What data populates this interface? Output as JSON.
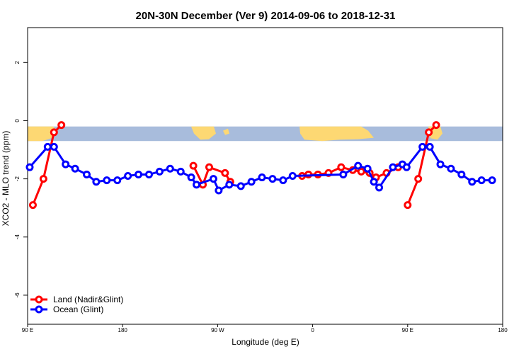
{
  "chart_data": {
    "type": "line",
    "title": "20N-30N December (Ver 9)   2014-09-06 to 2018-12-31",
    "xlabel": "Longitude (deg E)",
    "ylabel": "XCO2 - MLO trend (ppm)",
    "xlim": [
      90,
      540
    ],
    "ylim": [
      -7,
      3.2
    ],
    "x_ticks": [
      {
        "value": 90,
        "label": "90 E"
      },
      {
        "value": 180,
        "label": "180"
      },
      {
        "value": 270,
        "label": "90 W"
      },
      {
        "value": 360,
        "label": "0"
      },
      {
        "value": 450,
        "label": "90 E"
      },
      {
        "value": 540,
        "label": "180"
      }
    ],
    "y_ticks": [
      {
        "value": -6,
        "label": "-6"
      },
      {
        "value": -4,
        "label": "-4"
      },
      {
        "value": -2,
        "label": "-2"
      },
      {
        "value": 0,
        "label": "0"
      },
      {
        "value": 2,
        "label": "2"
      }
    ],
    "map_strip": {
      "y_top": -0.2,
      "y_bottom": -0.7,
      "ocean_color": "#a8bcdc",
      "land_color": "#fdd873"
    },
    "legend_position": "bottom-left",
    "series": [
      {
        "name": "Land (Nadir&Glint)",
        "color": "#ff0000",
        "segments": [
          [
            [
              95,
              -2.9
            ],
            [
              105,
              -2.0
            ],
            [
              115,
              -0.4
            ],
            [
              122,
              -0.15
            ]
          ],
          [
            [
              247,
              -1.55
            ],
            [
              256,
              -2.2
            ],
            [
              262,
              -1.6
            ],
            [
              277,
              -1.8
            ],
            [
              282,
              -2.1
            ]
          ],
          [
            [
              350,
              -1.9
            ],
            [
              356,
              -1.85
            ],
            [
              365,
              -1.85
            ],
            [
              375,
              -1.8
            ],
            [
              387,
              -1.6
            ],
            [
              398,
              -1.7
            ],
            [
              406,
              -1.75
            ],
            [
              414,
              -1.8
            ],
            [
              420,
              -1.95
            ],
            [
              430,
              -1.8
            ],
            [
              441,
              -1.6
            ]
          ],
          [
            [
              450,
              -2.9
            ],
            [
              460,
              -2.0
            ],
            [
              470,
              -0.4
            ],
            [
              477,
              -0.15
            ]
          ]
        ]
      },
      {
        "name": "Ocean (Glint)",
        "color": "#0000ff",
        "segments": [
          [
            [
              92,
              -1.6
            ],
            [
              109,
              -0.9
            ],
            [
              115,
              -0.9
            ],
            [
              126,
              -1.5
            ],
            [
              135,
              -1.65
            ],
            [
              146,
              -1.85
            ],
            [
              155,
              -2.1
            ],
            [
              165,
              -2.05
            ],
            [
              175,
              -2.05
            ],
            [
              185,
              -1.9
            ],
            [
              195,
              -1.85
            ],
            [
              205,
              -1.85
            ],
            [
              215,
              -1.75
            ],
            [
              225,
              -1.65
            ],
            [
              235,
              -1.75
            ],
            [
              245,
              -1.95
            ],
            [
              250,
              -2.2
            ],
            [
              266,
              -2.0
            ],
            [
              271,
              -2.4
            ],
            [
              281,
              -2.2
            ],
            [
              292,
              -2.25
            ],
            [
              302,
              -2.1
            ],
            [
              312,
              -1.95
            ],
            [
              322,
              -2.0
            ],
            [
              332,
              -2.05
            ],
            [
              341,
              -1.9
            ],
            [
              389,
              -1.85
            ],
            [
              403,
              -1.55
            ],
            [
              412,
              -1.65
            ],
            [
              418,
              -2.1
            ],
            [
              423,
              -2.3
            ],
            [
              436,
              -1.6
            ],
            [
              445,
              -1.5
            ],
            [
              449,
              -1.6
            ],
            [
              464,
              -0.9
            ],
            [
              471,
              -0.9
            ],
            [
              481,
              -1.5
            ],
            [
              491,
              -1.65
            ],
            [
              501,
              -1.85
            ],
            [
              511,
              -2.1
            ],
            [
              520,
              -2.05
            ],
            [
              530,
              -2.05
            ]
          ]
        ]
      }
    ]
  }
}
